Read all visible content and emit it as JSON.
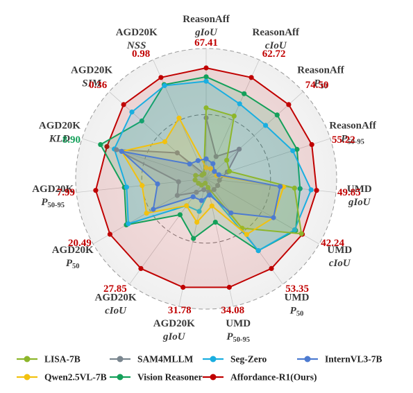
{
  "chart_data": {
    "type": "radar",
    "axes": [
      {
        "name": "ReasonAff",
        "metric": "gIoU",
        "sub": ""
      },
      {
        "name": "ReasonAff",
        "metric": "cIoU",
        "sub": ""
      },
      {
        "name": "ReasonAff",
        "metric": "P",
        "sub": "50"
      },
      {
        "name": "ReasonAff",
        "metric": "P",
        "sub": "50-95"
      },
      {
        "name": "UMD",
        "metric": "gIoU",
        "sub": ""
      },
      {
        "name": "UMD",
        "metric": "cIoU",
        "sub": ""
      },
      {
        "name": "UMD",
        "metric": "P",
        "sub": "50"
      },
      {
        "name": "UMD",
        "metric": "P",
        "sub": "50-95"
      },
      {
        "name": "AGD20K",
        "metric": "gIoU",
        "sub": ""
      },
      {
        "name": "AGD20K",
        "metric": "cIoU",
        "sub": ""
      },
      {
        "name": "AGD20K",
        "metric": "P",
        "sub": "50"
      },
      {
        "name": "AGD20K",
        "metric": "P",
        "sub": "50-95"
      },
      {
        "name": "AGD20K",
        "metric": "KLD",
        "sub": ""
      },
      {
        "name": "AGD20K",
        "metric": "SIM",
        "sub": ""
      },
      {
        "name": "AGD20K",
        "metric": "NSS",
        "sub": ""
      }
    ],
    "axis_value_labels": [
      "67.41",
      "62.72",
      "74.50",
      "55.22",
      "49.85",
      "42.24",
      "53.35",
      "34.08",
      "31.78",
      "27.85",
      "20.49",
      "7.99",
      "8.90",
      "0.36",
      "0.98"
    ],
    "axis_value_colors": [
      "#c00000",
      "#c00000",
      "#c00000",
      "#c00000",
      "#c00000",
      "#c00000",
      "#c00000",
      "#c00000",
      "#c00000",
      "#c00000",
      "#c00000",
      "#c00000",
      "#14a05a",
      "#c00000",
      "#c00000"
    ],
    "radial_scale": "normalized per axis, 0 to 1",
    "series": [
      {
        "name": "LISA-7B",
        "color": "#8db62b",
        "values": [
          0.64,
          0.62,
          0.25,
          0.22,
          0.8,
          0.99,
          0.55,
          0.08,
          0.04,
          0.07,
          0.08,
          0.1,
          0.1,
          0.05,
          0.05
        ]
      },
      {
        "name": "SAM4MLLM",
        "color": "#7a868f",
        "values": [
          0.55,
          0.22,
          0.4,
          0.2,
          0.12,
          0.12,
          0.12,
          0.12,
          0.1,
          0.15,
          0.3,
          0.25,
          0.85,
          0.35,
          0.05
        ]
      },
      {
        "name": "Seg-Zero",
        "color": "#1aaee0",
        "values": [
          0.88,
          0.74,
          0.72,
          0.82,
          0.95,
          0.92,
          0.8,
          0.12,
          0.3,
          0.3,
          0.81,
          0.72,
          0.87,
          0.9,
          0.92
        ]
      },
      {
        "name": "InternVL3-7B",
        "color": "#4d7bd1",
        "values": [
          0.18,
          0.15,
          0.1,
          0.12,
          0.67,
          0.7,
          0.38,
          0.15,
          0.2,
          0.2,
          0.55,
          0.44,
          0.8,
          0.2,
          0.18
        ]
      },
      {
        "name": "Qwen2.5VL-7B",
        "color": "#f2c10f",
        "values": [
          0.1,
          0.1,
          0.1,
          0.1,
          0.7,
          0.7,
          0.62,
          0.25,
          0.4,
          0.3,
          0.62,
          0.58,
          0.8,
          0.5,
          0.6
        ]
      },
      {
        "name": "Vision Reasoner",
        "color": "#14a05a",
        "values": [
          0.92,
          0.84,
          0.86,
          0.86,
          0.85,
          0.93,
          0.8,
          0.4,
          0.55,
          0.4,
          0.83,
          0.74,
          1.0,
          0.78,
          0.93
        ]
      },
      {
        "name": "Affordance-R1(Ours)",
        "color": "#c00000",
        "values": [
          1.0,
          1.0,
          1.0,
          1.0,
          1.0,
          1.0,
          1.0,
          1.0,
          1.0,
          1.0,
          1.0,
          1.0,
          0.94,
          1.0,
          1.0
        ]
      }
    ],
    "grid": true,
    "legend_position": "bottom"
  }
}
